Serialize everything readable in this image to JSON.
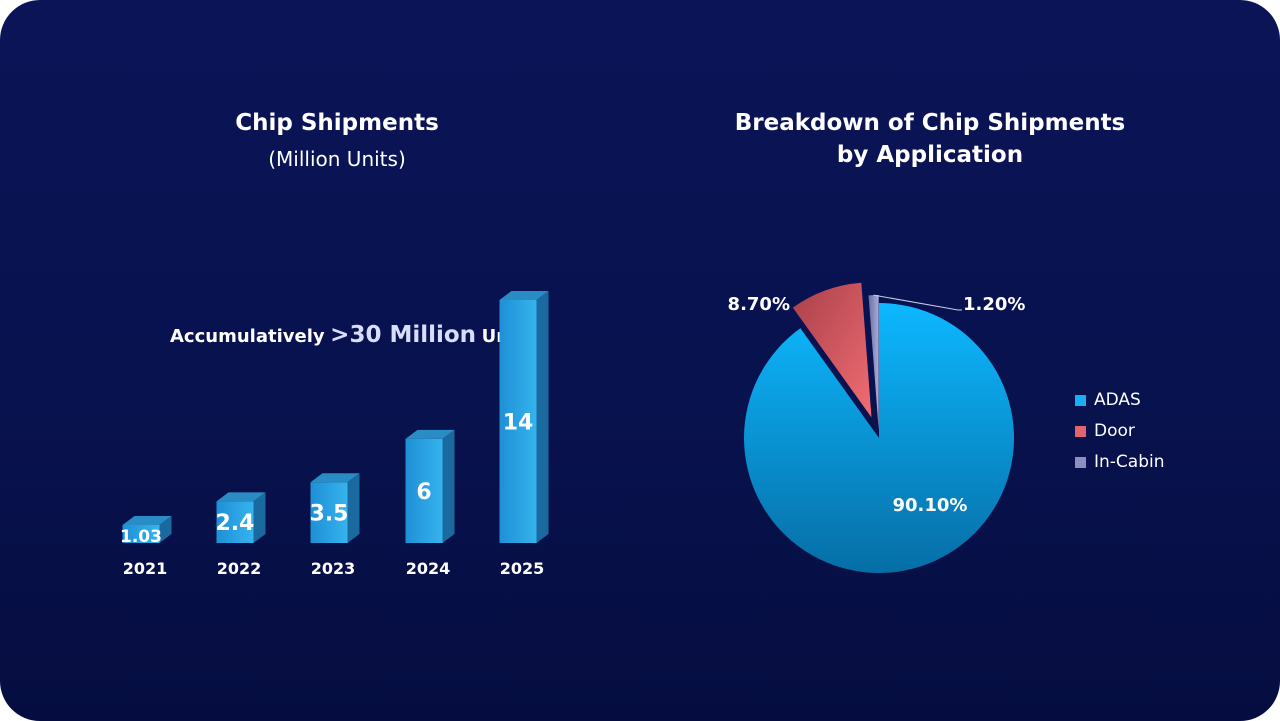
{
  "left_chart": {
    "title": "Chip Shipments",
    "subtitle": "(Million Units)",
    "annotation": {
      "prefix": "Accumulatively",
      "highlight": ">30 Million",
      "suffix": "Units"
    }
  },
  "right_chart": {
    "title_line1": "Breakdown of Chip Shipments",
    "title_line2": "by Application"
  },
  "chart_data": [
    {
      "type": "bar",
      "title": "Chip Shipments",
      "subtitle": "(Million Units)",
      "categories": [
        "2021",
        "2022",
        "2023",
        "2024",
        "2025"
      ],
      "values": [
        1.03,
        2.4,
        3.5,
        6,
        14
      ],
      "data_labels": [
        "1.03",
        "2.4",
        "3.5",
        "6",
        "14"
      ],
      "ylim": [
        0,
        14
      ],
      "grid": false,
      "style": "3d-column",
      "color": "#2a9de0"
    },
    {
      "type": "pie",
      "title": "Breakdown of Chip Shipments by Application",
      "labels": [
        "ADAS",
        "Door",
        "In-Cabin"
      ],
      "values": [
        90.1,
        8.7,
        1.2
      ],
      "data_labels": [
        "90.10%",
        "8.70%",
        "1.20%"
      ],
      "colors": [
        "#1aaef0",
        "#e2656c",
        "#8a8fc0"
      ],
      "legend": "right"
    }
  ]
}
